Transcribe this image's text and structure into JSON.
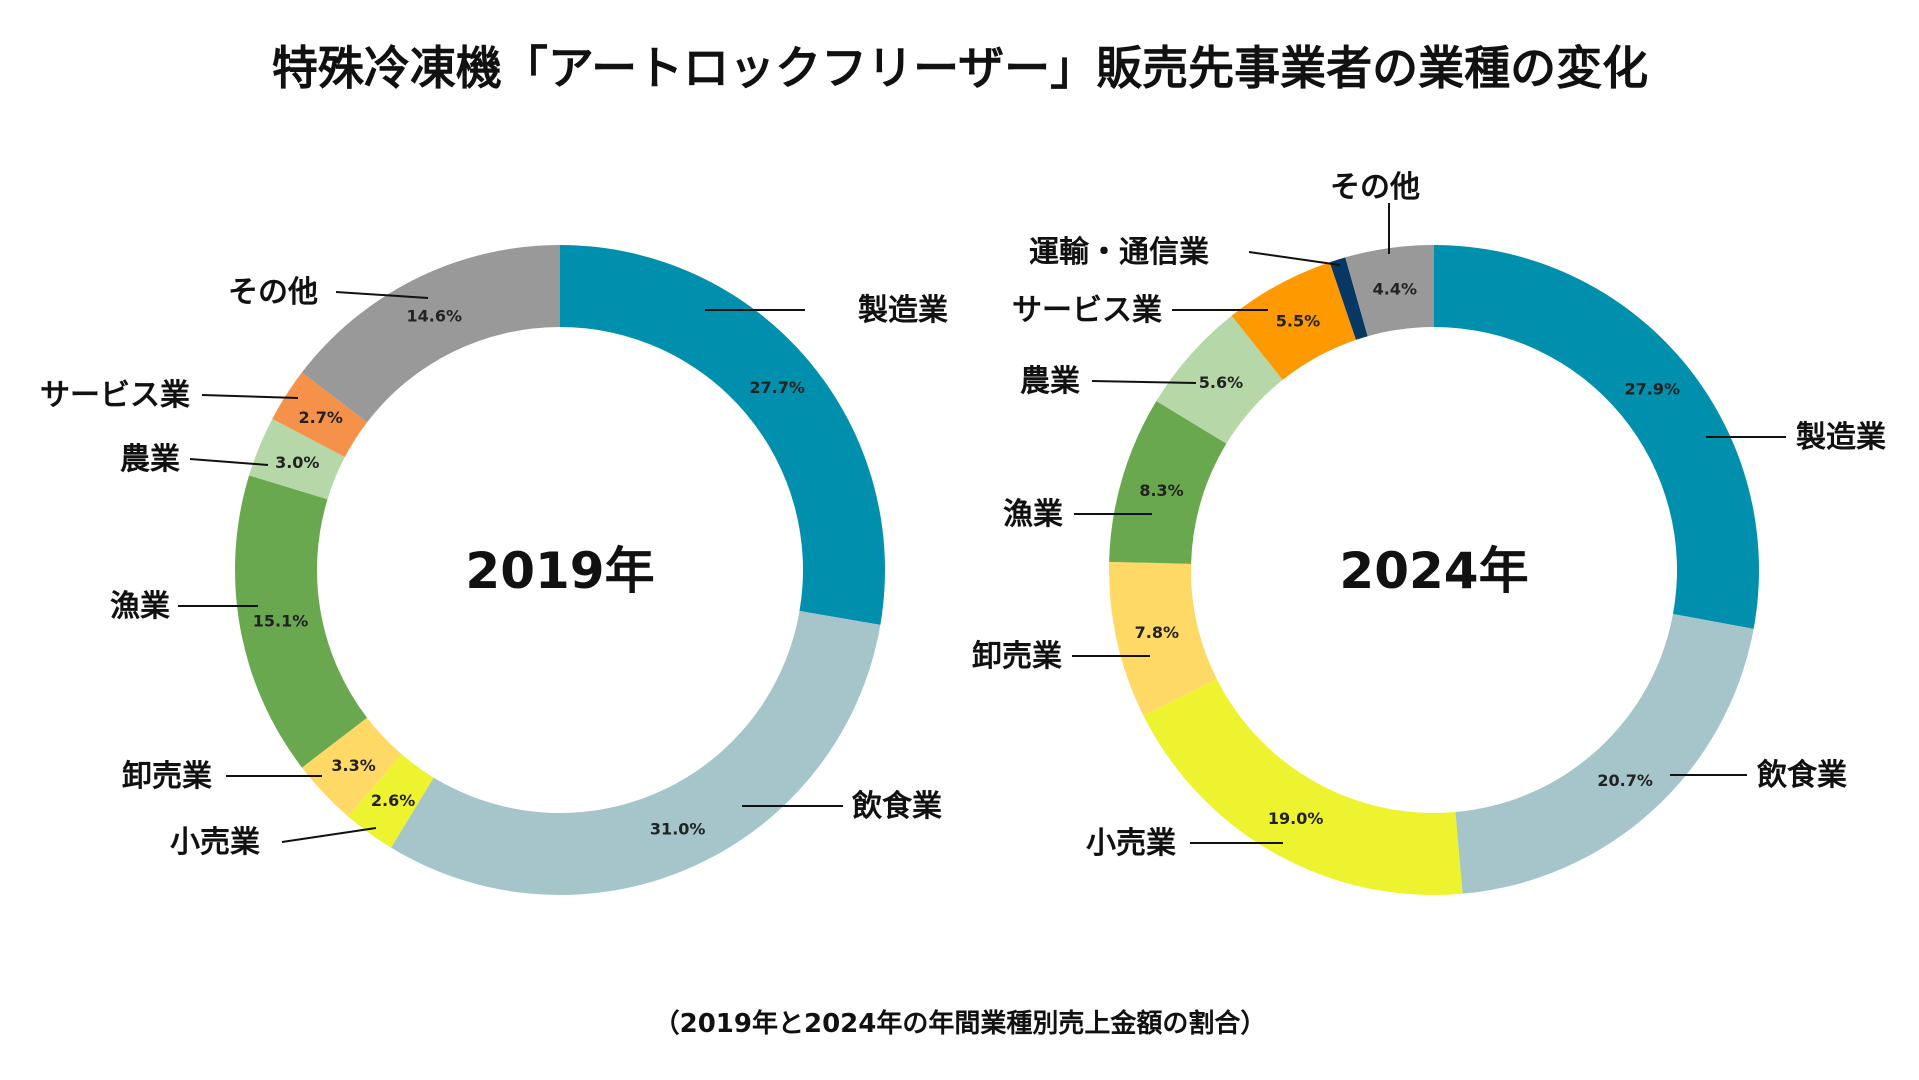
{
  "title": "特殊冷凍機「アートロックフリーザー」販売先事業者の業種の変化",
  "caption": "（2019年と2024年の年間業種別売上金額の割合）",
  "chart_data": [
    {
      "type": "pie",
      "variant": "donut",
      "center_label": "2019年",
      "slices": [
        {
          "name": "製造業",
          "value": 27.7,
          "label": "27.7%",
          "color": "#0090AE"
        },
        {
          "name": "飲食業",
          "value": 31.0,
          "label": "31.0%",
          "color": "#A5C5CA"
        },
        {
          "name": "小売業",
          "value": 2.6,
          "label": "2.6%",
          "color": "#EEF330"
        },
        {
          "name": "卸売業",
          "value": 3.3,
          "label": "3.3%",
          "color": "#FFD966"
        },
        {
          "name": "漁業",
          "value": 15.1,
          "label": "15.1%",
          "color": "#6AA84F"
        },
        {
          "name": "農業",
          "value": 3.0,
          "label": "3.0%",
          "color": "#B6D7A8"
        },
        {
          "name": "サービス業",
          "value": 2.7,
          "label": "2.7%",
          "color": "#F6914A"
        },
        {
          "name": "その他",
          "value": 14.6,
          "label": "14.6%",
          "color": "#999999"
        }
      ]
    },
    {
      "type": "pie",
      "variant": "donut",
      "center_label": "2024年",
      "slices": [
        {
          "name": "製造業",
          "value": 27.9,
          "label": "27.9%",
          "color": "#0090AE"
        },
        {
          "name": "飲食業",
          "value": 20.7,
          "label": "20.7%",
          "color": "#A5C5CA"
        },
        {
          "name": "小売業",
          "value": 19.0,
          "label": "19.0%",
          "color": "#EEF330"
        },
        {
          "name": "卸売業",
          "value": 7.8,
          "label": "7.8%",
          "color": "#FFD966"
        },
        {
          "name": "漁業",
          "value": 8.3,
          "label": "8.3%",
          "color": "#6AA84F"
        },
        {
          "name": "農業",
          "value": 5.6,
          "label": "5.6%",
          "color": "#B6D7A8"
        },
        {
          "name": "サービス業",
          "value": 5.5,
          "label": "5.5%",
          "color": "#FF9900"
        },
        {
          "name": "運輸・通信業",
          "value": 0.8,
          "label": "",
          "color": "#073763"
        },
        {
          "name": "その他",
          "value": 4.4,
          "label": "4.4%",
          "color": "#999999"
        }
      ]
    }
  ]
}
